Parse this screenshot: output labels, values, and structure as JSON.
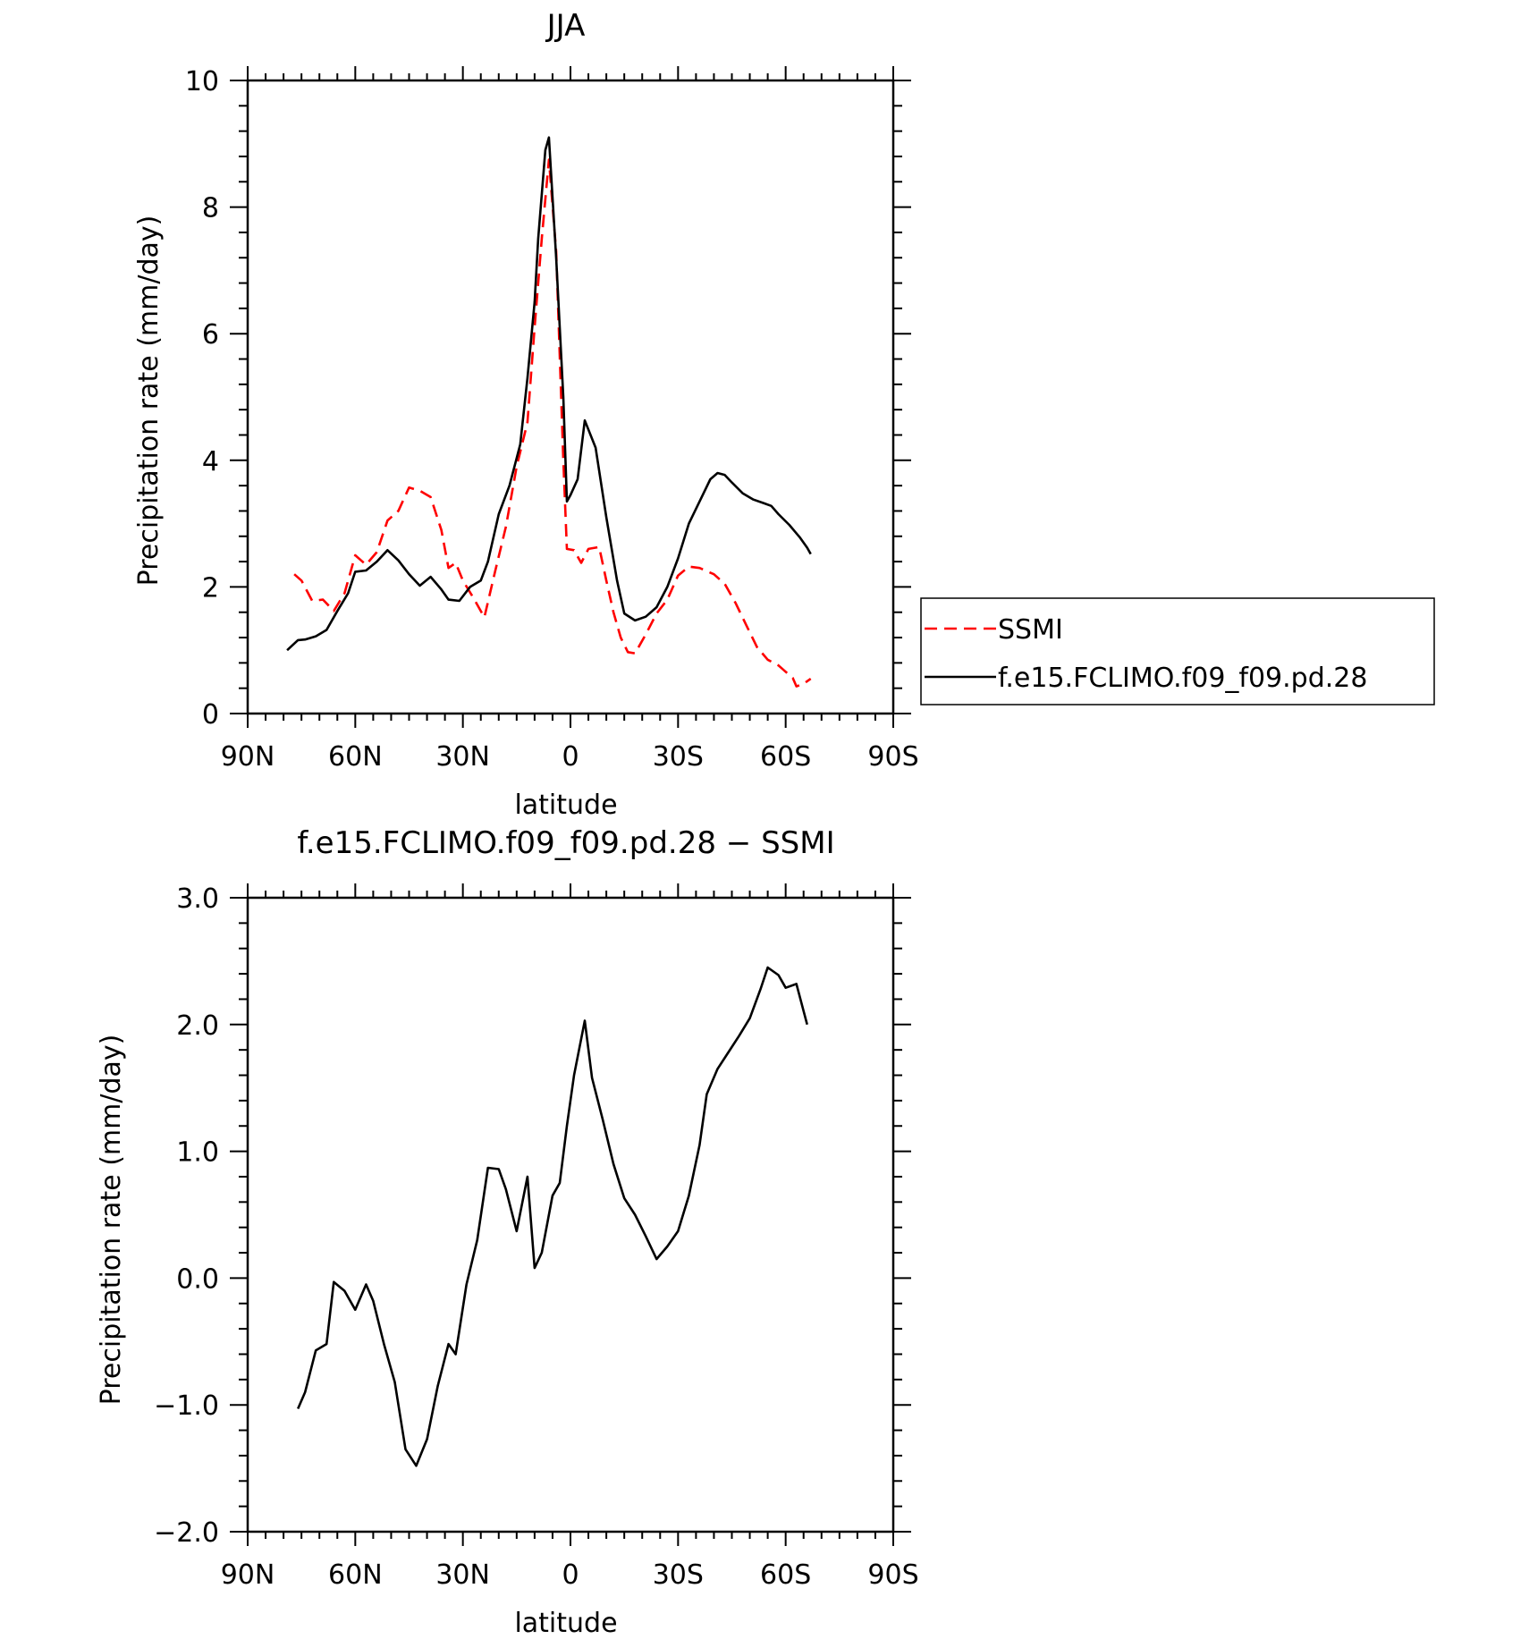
{
  "chart_data": [
    {
      "type": "line",
      "title": "JJA",
      "xlabel": "latitude",
      "ylabel": "Precipitation rate (mm/day)",
      "xlim": [
        -90,
        90
      ],
      "ylim": [
        0,
        10
      ],
      "x_ticks": [
        {
          "value": -90,
          "label": "90N"
        },
        {
          "value": -60,
          "label": "60N"
        },
        {
          "value": -30,
          "label": "30N"
        },
        {
          "value": 0,
          "label": "0"
        },
        {
          "value": 30,
          "label": "30S"
        },
        {
          "value": 60,
          "label": "60S"
        },
        {
          "value": 90,
          "label": "90S"
        }
      ],
      "y_ticks": [
        {
          "value": 0,
          "label": "0"
        },
        {
          "value": 2,
          "label": "2"
        },
        {
          "value": 4,
          "label": "4"
        },
        {
          "value": 6,
          "label": "6"
        },
        {
          "value": 8,
          "label": "8"
        },
        {
          "value": 10,
          "label": "10"
        }
      ],
      "legend": {
        "placement": "right"
      },
      "series": [
        {
          "name": "SSMI",
          "color": "#ff0000",
          "dash": "dashed",
          "points": [
            [
              -77,
              2.2
            ],
            [
              -75,
              2.1
            ],
            [
              -72,
              1.78
            ],
            [
              -69,
              1.8
            ],
            [
              -66,
              1.62
            ],
            [
              -63,
              1.9
            ],
            [
              -60,
              2.5
            ],
            [
              -57,
              2.35
            ],
            [
              -54,
              2.55
            ],
            [
              -51,
              3.05
            ],
            [
              -48,
              3.2
            ],
            [
              -45,
              3.57
            ],
            [
              -42,
              3.52
            ],
            [
              -39,
              3.42
            ],
            [
              -36,
              2.9
            ],
            [
              -34,
              2.3
            ],
            [
              -32,
              2.38
            ],
            [
              -30,
              2.1
            ],
            [
              -27,
              1.82
            ],
            [
              -24,
              1.52
            ],
            [
              -21,
              2.25
            ],
            [
              -18,
              2.95
            ],
            [
              -15,
              3.9
            ],
            [
              -12,
              4.6
            ],
            [
              -10,
              6.1
            ],
            [
              -8,
              7.5
            ],
            [
              -6,
              8.75
            ],
            [
              -4,
              7.3
            ],
            [
              -2,
              4.0
            ],
            [
              -1,
              2.6
            ],
            [
              1,
              2.58
            ],
            [
              3,
              2.38
            ],
            [
              5,
              2.6
            ],
            [
              8,
              2.63
            ],
            [
              10,
              2.1
            ],
            [
              12,
              1.6
            ],
            [
              14,
              1.2
            ],
            [
              16,
              0.97
            ],
            [
              18,
              0.95
            ],
            [
              21,
              1.25
            ],
            [
              24,
              1.58
            ],
            [
              27,
              1.8
            ],
            [
              30,
              2.18
            ],
            [
              33,
              2.32
            ],
            [
              36,
              2.3
            ],
            [
              40,
              2.2
            ],
            [
              43,
              2.05
            ],
            [
              46,
              1.75
            ],
            [
              49,
              1.4
            ],
            [
              52,
              1.05
            ],
            [
              55,
              0.85
            ],
            [
              58,
              0.76
            ],
            [
              60,
              0.66
            ],
            [
              62,
              0.56
            ],
            [
              63,
              0.43
            ],
            [
              65,
              0.47
            ],
            [
              67,
              0.55
            ]
          ]
        },
        {
          "name": "f.e15.FCLIMO.f09_f09.pd.28",
          "color": "#000000",
          "dash": "solid",
          "points": [
            [
              -79,
              1.0
            ],
            [
              -76,
              1.16
            ],
            [
              -74,
              1.17
            ],
            [
              -71,
              1.22
            ],
            [
              -68,
              1.32
            ],
            [
              -65,
              1.62
            ],
            [
              -62,
              1.9
            ],
            [
              -60,
              2.24
            ],
            [
              -57,
              2.26
            ],
            [
              -54,
              2.4
            ],
            [
              -51,
              2.58
            ],
            [
              -48,
              2.42
            ],
            [
              -45,
              2.2
            ],
            [
              -42,
              2.02
            ],
            [
              -39,
              2.16
            ],
            [
              -36,
              1.96
            ],
            [
              -34,
              1.8
            ],
            [
              -31,
              1.78
            ],
            [
              -28,
              2.0
            ],
            [
              -25,
              2.1
            ],
            [
              -23,
              2.4
            ],
            [
              -20,
              3.15
            ],
            [
              -17,
              3.6
            ],
            [
              -14,
              4.25
            ],
            [
              -12,
              5.3
            ],
            [
              -10,
              6.5
            ],
            [
              -9,
              7.5
            ],
            [
              -7,
              8.9
            ],
            [
              -6,
              9.1
            ],
            [
              -4,
              7.2
            ],
            [
              -2,
              5.0
            ],
            [
              -1,
              3.35
            ],
            [
              0,
              3.45
            ],
            [
              2,
              3.7
            ],
            [
              4,
              4.63
            ],
            [
              7,
              4.2
            ],
            [
              10,
              3.1
            ],
            [
              13,
              2.1
            ],
            [
              15,
              1.58
            ],
            [
              18,
              1.47
            ],
            [
              21,
              1.53
            ],
            [
              24,
              1.68
            ],
            [
              27,
              2.0
            ],
            [
              30,
              2.45
            ],
            [
              33,
              3.0
            ],
            [
              36,
              3.35
            ],
            [
              39,
              3.7
            ],
            [
              41,
              3.8
            ],
            [
              43,
              3.77
            ],
            [
              45,
              3.65
            ],
            [
              48,
              3.48
            ],
            [
              51,
              3.38
            ],
            [
              54,
              3.32
            ],
            [
              56,
              3.28
            ],
            [
              58,
              3.15
            ],
            [
              61,
              2.98
            ],
            [
              64,
              2.78
            ],
            [
              66,
              2.62
            ],
            [
              67,
              2.52
            ]
          ]
        }
      ]
    },
    {
      "type": "line",
      "title": "f.e15.FCLIMO.f09_f09.pd.28 − SSMI",
      "xlabel": "latitude",
      "ylabel": "Precipitation rate (mm/day)",
      "xlim": [
        -90,
        90
      ],
      "ylim": [
        -2.0,
        3.0
      ],
      "x_ticks": [
        {
          "value": -90,
          "label": "90N"
        },
        {
          "value": -60,
          "label": "60N"
        },
        {
          "value": -30,
          "label": "30N"
        },
        {
          "value": 0,
          "label": "0"
        },
        {
          "value": 30,
          "label": "30S"
        },
        {
          "value": 60,
          "label": "60S"
        },
        {
          "value": 90,
          "label": "90S"
        }
      ],
      "y_ticks": [
        {
          "value": -2.0,
          "label": "−2.0"
        },
        {
          "value": -1.0,
          "label": "−1.0"
        },
        {
          "value": 0.0,
          "label": "0.0"
        },
        {
          "value": 1.0,
          "label": "1.0"
        },
        {
          "value": 2.0,
          "label": "2.0"
        },
        {
          "value": 3.0,
          "label": "3.0"
        }
      ],
      "series": [
        {
          "color": "#000000",
          "dash": "solid",
          "points": [
            [
              -76,
              -1.03
            ],
            [
              -74,
              -0.9
            ],
            [
              -71,
              -0.57
            ],
            [
              -68,
              -0.52
            ],
            [
              -66,
              -0.03
            ],
            [
              -63,
              -0.1
            ],
            [
              -60,
              -0.25
            ],
            [
              -57,
              -0.05
            ],
            [
              -55,
              -0.18
            ],
            [
              -52,
              -0.52
            ],
            [
              -49,
              -0.82
            ],
            [
              -46,
              -1.35
            ],
            [
              -43,
              -1.48
            ],
            [
              -40,
              -1.27
            ],
            [
              -37,
              -0.85
            ],
            [
              -34,
              -0.52
            ],
            [
              -32,
              -0.6
            ],
            [
              -29,
              -0.05
            ],
            [
              -26,
              0.3
            ],
            [
              -23,
              0.87
            ],
            [
              -20,
              0.86
            ],
            [
              -18,
              0.7
            ],
            [
              -15,
              0.37
            ],
            [
              -12,
              0.8
            ],
            [
              -10,
              0.08
            ],
            [
              -8,
              0.2
            ],
            [
              -5,
              0.65
            ],
            [
              -3,
              0.75
            ],
            [
              -1,
              1.2
            ],
            [
              1,
              1.6
            ],
            [
              4,
              2.03
            ],
            [
              6,
              1.58
            ],
            [
              9,
              1.25
            ],
            [
              12,
              0.9
            ],
            [
              15,
              0.63
            ],
            [
              18,
              0.5
            ],
            [
              21,
              0.33
            ],
            [
              24,
              0.15
            ],
            [
              27,
              0.25
            ],
            [
              30,
              0.37
            ],
            [
              33,
              0.65
            ],
            [
              36,
              1.05
            ],
            [
              38,
              1.45
            ],
            [
              41,
              1.65
            ],
            [
              44,
              1.78
            ],
            [
              47,
              1.91
            ],
            [
              50,
              2.05
            ],
            [
              53,
              2.28
            ],
            [
              55,
              2.45
            ],
            [
              58,
              2.39
            ],
            [
              60,
              2.29
            ],
            [
              63,
              2.32
            ],
            [
              66,
              2.0
            ]
          ]
        }
      ]
    }
  ]
}
